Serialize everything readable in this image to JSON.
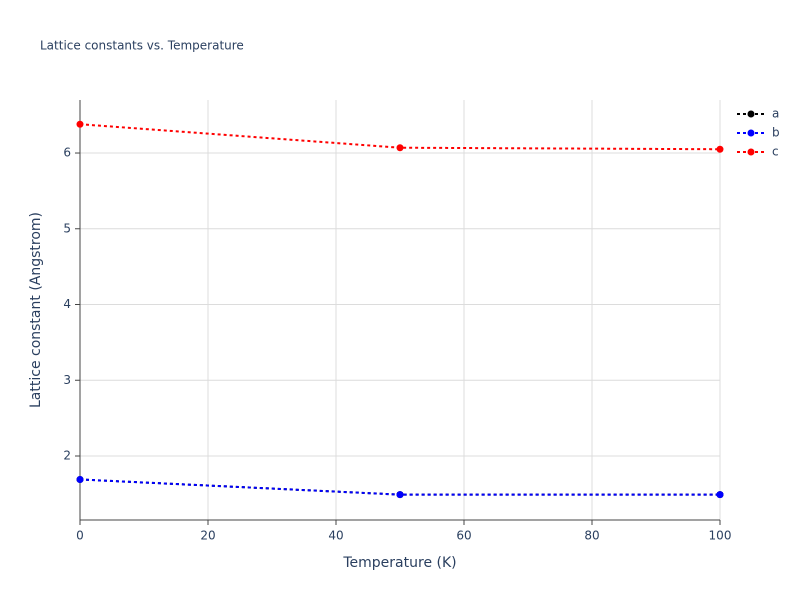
{
  "chart_data": {
    "type": "line",
    "title": "Lattice constants vs. Temperature",
    "x_label": "Temperature (K)",
    "y_label": "Lattice constant (Angstrom)",
    "x": [
      0,
      50,
      100
    ],
    "series": [
      {
        "name": "a",
        "color": "#000000",
        "values": [
          1.69,
          1.49,
          1.49
        ]
      },
      {
        "name": "b",
        "color": "#0000ff",
        "values": [
          1.69,
          1.49,
          1.49
        ]
      },
      {
        "name": "c",
        "color": "#ff0000",
        "values": [
          6.38,
          6.07,
          6.05
        ]
      }
    ],
    "xlim": [
      0,
      100
    ],
    "xticks": [
      0,
      20,
      40,
      60,
      80,
      100
    ],
    "ylim": [
      1.155,
      6.7
    ],
    "yticks": [
      2,
      3,
      4,
      5,
      6
    ],
    "grid": true
  }
}
